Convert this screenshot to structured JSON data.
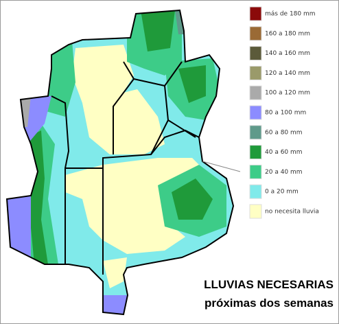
{
  "legend": {
    "items": [
      {
        "label": "más de 180 mm",
        "color": "#8b0a0a"
      },
      {
        "label": "160 a 180 mm",
        "color": "#9a6a35"
      },
      {
        "label": "140 a 160 mm",
        "color": "#5b5a3a"
      },
      {
        "label": "120 a 140 mm",
        "color": "#9a9a6a"
      },
      {
        "label": "100 a 120 mm",
        "color": "#aaaaaa"
      },
      {
        "label": "80 a 100 mm",
        "color": "#8c8cff"
      },
      {
        "label": "60 a 80 mm",
        "color": "#5f9a8a"
      },
      {
        "label": "40 a 60 mm",
        "color": "#1f9a3a"
      },
      {
        "label": "20 a 40 mm",
        "color": "#3dcc88"
      },
      {
        "label": "0 a 20 mm",
        "color": "#80eaea"
      },
      {
        "label": "no necesita lluvia",
        "color": "#ffffc4"
      }
    ]
  },
  "caption": {
    "line1": "LLUVIAS NECESARIAS",
    "line2": "próximas dos semanas"
  }
}
